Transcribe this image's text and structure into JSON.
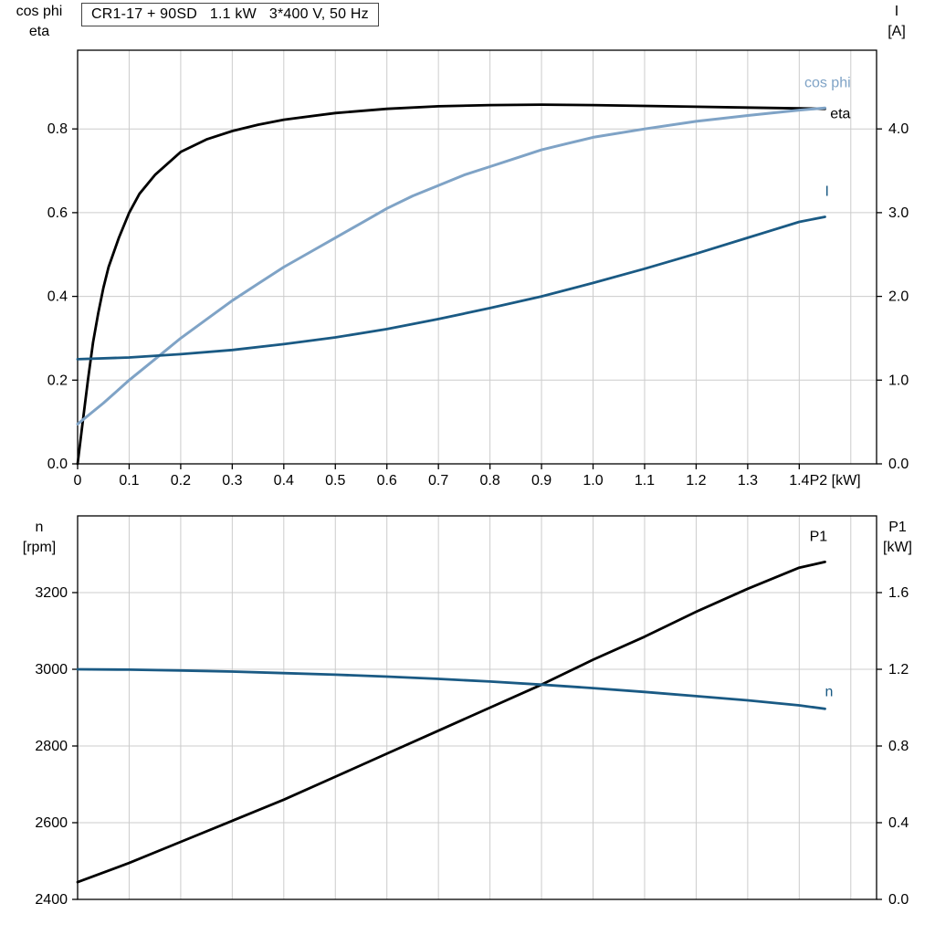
{
  "colors": {
    "black": "#000000",
    "light_blue": "#7fa3c6",
    "dark_blue": "#1a5a84",
    "grid": "#cccccc",
    "frame": "#000000"
  },
  "chart_data": [
    {
      "type": "line",
      "title": "CR1-17 + 90SD   1.1 kW   3*400 V, 50 Hz",
      "x_axis": {
        "label": "P2 [kW]",
        "lim": [
          0,
          1.55
        ],
        "ticks": [
          0,
          0.1,
          0.2,
          0.3,
          0.4,
          0.5,
          0.6,
          0.7,
          0.8,
          0.9,
          1.0,
          1.1,
          1.2,
          1.3,
          1.4
        ],
        "tick_labels": [
          "0",
          "0.1",
          "0.2",
          "0.3",
          "0.4",
          "0.5",
          "0.6",
          "0.7",
          "0.8",
          "0.9",
          "1.0",
          "1.1",
          "1.2",
          "1.3",
          "1.4"
        ],
        "grid_extra": [
          1.5
        ]
      },
      "left_axis": {
        "label_lines": [
          "cos phi",
          "eta"
        ],
        "lim": [
          0,
          0.988
        ],
        "ticks": [
          0,
          0.2,
          0.4,
          0.6,
          0.8
        ],
        "tick_labels": [
          "0.0",
          "0.2",
          "0.4",
          "0.6",
          "0.8"
        ]
      },
      "right_axis": {
        "label_lines": [
          "I",
          "[A]"
        ],
        "lim": [
          0,
          4.94
        ],
        "ticks": [
          0,
          1,
          2,
          3,
          4
        ],
        "tick_labels": [
          "0.0",
          "1.0",
          "2.0",
          "3.0",
          "4.0"
        ]
      },
      "series": [
        {
          "name": "eta",
          "axis": "left",
          "color": "#000000",
          "width": 2.8,
          "x": [
            0,
            0.01,
            0.02,
            0.03,
            0.04,
            0.05,
            0.06,
            0.08,
            0.1,
            0.12,
            0.15,
            0.2,
            0.25,
            0.3,
            0.35,
            0.4,
            0.5,
            0.6,
            0.7,
            0.8,
            0.9,
            1.0,
            1.1,
            1.2,
            1.3,
            1.4,
            1.45
          ],
          "y": [
            0,
            0.1,
            0.2,
            0.29,
            0.36,
            0.42,
            0.47,
            0.54,
            0.6,
            0.645,
            0.69,
            0.745,
            0.775,
            0.795,
            0.81,
            0.822,
            0.838,
            0.848,
            0.854,
            0.857,
            0.858,
            0.857,
            0.855,
            0.853,
            0.851,
            0.849,
            0.848
          ]
        },
        {
          "name": "cos phi",
          "axis": "left",
          "color": "#7fa3c6",
          "width": 3,
          "x": [
            0,
            0.05,
            0.1,
            0.15,
            0.2,
            0.25,
            0.3,
            0.35,
            0.4,
            0.45,
            0.5,
            0.55,
            0.6,
            0.65,
            0.7,
            0.75,
            0.8,
            0.85,
            0.9,
            0.95,
            1.0,
            1.1,
            1.2,
            1.3,
            1.4,
            1.45
          ],
          "y": [
            0.095,
            0.145,
            0.2,
            0.25,
            0.3,
            0.345,
            0.39,
            0.43,
            0.47,
            0.505,
            0.54,
            0.575,
            0.61,
            0.64,
            0.665,
            0.69,
            0.71,
            0.73,
            0.75,
            0.765,
            0.78,
            0.8,
            0.818,
            0.832,
            0.845,
            0.85
          ]
        },
        {
          "name": "I",
          "axis": "right",
          "color": "#1a5a84",
          "width": 2.8,
          "x": [
            0,
            0.1,
            0.2,
            0.3,
            0.4,
            0.5,
            0.6,
            0.7,
            0.8,
            0.9,
            1.0,
            1.1,
            1.2,
            1.3,
            1.4,
            1.45
          ],
          "y": [
            1.25,
            1.27,
            1.31,
            1.36,
            1.43,
            1.51,
            1.61,
            1.73,
            1.86,
            2.0,
            2.16,
            2.33,
            2.51,
            2.7,
            2.89,
            2.95
          ]
        }
      ],
      "annotations": [
        {
          "text": "cos phi",
          "x": 1.41,
          "y": 0.9,
          "axis": "left",
          "color": "#7fa3c6"
        },
        {
          "text": "eta",
          "x": 1.46,
          "y": 0.825,
          "axis": "left",
          "color": "#000000"
        },
        {
          "text": "I",
          "x": 1.45,
          "y": 3.2,
          "axis": "right",
          "color": "#1a5a84"
        }
      ]
    },
    {
      "type": "line",
      "title": "",
      "x_axis": {
        "label": "",
        "lim": [
          0,
          1.55
        ],
        "ticks": [
          0,
          0.1,
          0.2,
          0.3,
          0.4,
          0.5,
          0.6,
          0.7,
          0.8,
          0.9,
          1.0,
          1.1,
          1.2,
          1.3,
          1.4
        ],
        "tick_labels": [],
        "grid_extra": [
          1.5
        ]
      },
      "left_axis": {
        "label_lines": [
          "n",
          "[rpm]"
        ],
        "lim": [
          2400,
          3400
        ],
        "ticks": [
          2400,
          2600,
          2800,
          3000,
          3200
        ],
        "tick_labels": [
          "2400",
          "2600",
          "2800",
          "3000",
          "3200"
        ]
      },
      "right_axis": {
        "label_lines": [
          "P1",
          "[kW]"
        ],
        "lim": [
          0,
          2.0
        ],
        "ticks": [
          0,
          0.4,
          0.8,
          1.2,
          1.6
        ],
        "tick_labels": [
          "0.0",
          "0.4",
          "0.8",
          "1.2",
          "1.6"
        ]
      },
      "series": [
        {
          "name": "P1",
          "axis": "right",
          "color": "#000000",
          "width": 2.8,
          "x": [
            0,
            0.1,
            0.2,
            0.3,
            0.4,
            0.5,
            0.6,
            0.7,
            0.8,
            0.9,
            1.0,
            1.1,
            1.2,
            1.3,
            1.4,
            1.45
          ],
          "y": [
            0.09,
            0.19,
            0.3,
            0.41,
            0.52,
            0.64,
            0.76,
            0.88,
            1.0,
            1.12,
            1.25,
            1.37,
            1.5,
            1.62,
            1.73,
            1.76
          ]
        },
        {
          "name": "n",
          "axis": "left",
          "color": "#1a5a84",
          "width": 2.8,
          "x": [
            0,
            0.1,
            0.2,
            0.3,
            0.4,
            0.5,
            0.6,
            0.7,
            0.8,
            0.9,
            1.0,
            1.1,
            1.2,
            1.3,
            1.4,
            1.45
          ],
          "y": [
            3000,
            2999,
            2997,
            2994,
            2990,
            2986,
            2981,
            2975,
            2968,
            2960,
            2951,
            2941,
            2930,
            2919,
            2906,
            2897
          ]
        }
      ],
      "annotations": [
        {
          "text": "P1",
          "x": 1.42,
          "y": 1.87,
          "axis": "right",
          "color": "#000000"
        },
        {
          "text": "n",
          "x": 1.45,
          "y": 2930,
          "axis": "left",
          "color": "#1a5a84"
        }
      ]
    }
  ]
}
